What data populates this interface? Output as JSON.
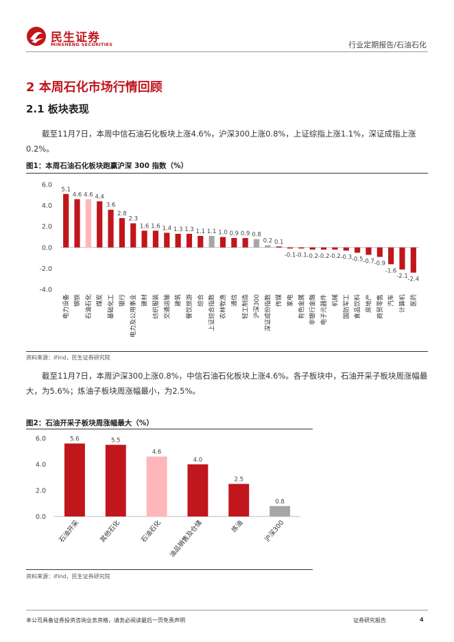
{
  "header": {
    "logo_cn": "民生证券",
    "logo_en": "MINSHENG SECURITIES",
    "report_type": "行业定期报告/石油石化"
  },
  "section": {
    "title": "2 本周石化市场行情回顾",
    "subtitle": "2.1 板块表现",
    "para1": "截至11月7日，本周中信石油石化板块上涨4.6%，沪深300上涨0.8%，上证综指上涨1.1%，深证成指上涨0.2%。",
    "para2": "截至11月7日，本周沪深300上涨0.8%，中信石油石化板块上涨4.6%。各子板块中，石油开采子板块周涨幅最大，为5.6%；炼油子板块周涨幅最小，为2.5%。"
  },
  "figure1": {
    "title": "图1：本周石油石化板块跑赢沪深 300 指数（%）",
    "source": "资料来源：iFind，民生证券研究院"
  },
  "figure2": {
    "title": "图2：石油开采子板块周涨幅最大（%）",
    "source": "资料来源：iFind，民生证券研究院"
  },
  "footer": {
    "disclaimer": "本公司具备证券投资咨询业务资格，请务必阅读最后一页免责声明",
    "label": "证券研究报告",
    "page": "4"
  },
  "colors": {
    "brand": "#c0161c",
    "bar_red": "#c0161c",
    "bar_highlight": "#ffb6b9",
    "bar_gray": "#a6a6a6"
  },
  "chart_data": [
    {
      "type": "bar",
      "categories": [
        "电力设备",
        "钢铁",
        "石油石化",
        "煤炭",
        "基础化工",
        "银行",
        "电力及公用事业",
        "建材",
        "纺织服装",
        "交通运输",
        "建筑",
        "餐饮旅游",
        "综合",
        "上证综合指数",
        "农林牧渔",
        "通信",
        "轻工制造",
        "沪深300",
        "深证成份指数",
        "传媒",
        "家电",
        "有色金属",
        "非银行金融",
        "电子元器件",
        "机械",
        "国防军工",
        "食品饮料",
        "房地产",
        "商贸零售",
        "汽车",
        "计算机",
        "医药"
      ],
      "values": [
        5.1,
        4.6,
        4.6,
        4.4,
        3.6,
        2.8,
        2.3,
        1.6,
        1.6,
        1.4,
        1.3,
        1.3,
        1.1,
        1.1,
        1.0,
        0.9,
        0.9,
        0.8,
        0.2,
        0.1,
        -0.1,
        -0.1,
        -0.2,
        -0.2,
        -0.2,
        -0.3,
        -0.5,
        -0.7,
        -0.9,
        -1.6,
        -2.1,
        -2.4
      ],
      "value_labels": [
        "5.1",
        "4.6",
        "4.6",
        "4.4",
        "3.6",
        "2.8",
        "2.3",
        "1.6",
        "1.6",
        "1.4",
        "1.3",
        "1.3",
        "1.1",
        "1.1",
        "1.0",
        "0.9",
        "0.9",
        "0.8",
        "0.2",
        "0.1",
        "-0.1",
        "-0.1",
        "-0.2",
        "-0.2",
        "-0.2",
        "-0.3",
        "-0.5",
        "-0.7",
        "-0.9",
        "-1.6",
        "-2.1",
        "-2.4"
      ],
      "highlight": [
        "石油石化"
      ],
      "gray": [
        "上证综合指数",
        "沪深300",
        "深证成份指数"
      ],
      "yticks": [
        "6.0",
        "4.0",
        "2.0",
        "0.0",
        "-2.0",
        "-4.0"
      ],
      "ylim": [
        -4,
        6
      ],
      "grid": false,
      "legend": "none"
    },
    {
      "type": "bar",
      "categories": [
        "石油开采",
        "其他石化",
        "石油石化",
        "油品销售及仓储",
        "炼油",
        "沪深300"
      ],
      "values": [
        5.6,
        5.5,
        4.6,
        4.0,
        2.5,
        0.8
      ],
      "value_labels": [
        "5.6",
        "5.5",
        "4.6",
        "4.0",
        "2.5",
        "0.8"
      ],
      "highlight": [
        "石油石化"
      ],
      "gray": [
        "沪深300"
      ],
      "yticks": [
        "6.0",
        "4.0",
        "2.0",
        "0.0"
      ],
      "ylim": [
        0,
        6
      ],
      "grid": false,
      "legend": "none"
    }
  ]
}
